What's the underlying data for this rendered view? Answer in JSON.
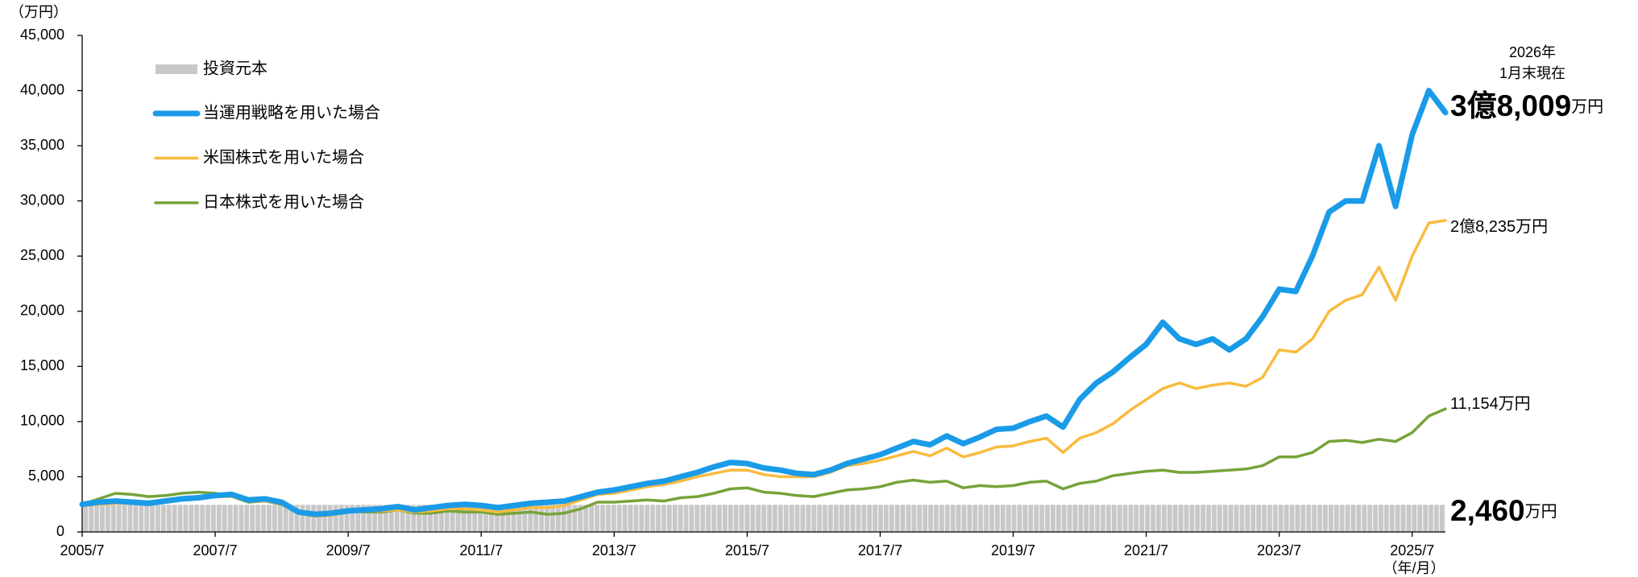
{
  "chart_data": {
    "type": "line",
    "y_label": "（万円）",
    "x_label": "（年/月）",
    "as_of": [
      "2026年",
      "1月末現在"
    ],
    "x": [
      "2005/7",
      "2005/10",
      "2006/1",
      "2006/4",
      "2006/7",
      "2006/10",
      "2007/1",
      "2007/4",
      "2007/7",
      "2007/10",
      "2008/1",
      "2008/4",
      "2008/7",
      "2008/10",
      "2009/1",
      "2009/4",
      "2009/7",
      "2009/10",
      "2010/1",
      "2010/4",
      "2010/7",
      "2010/10",
      "2011/1",
      "2011/4",
      "2011/7",
      "2011/10",
      "2012/1",
      "2012/4",
      "2012/7",
      "2012/10",
      "2013/1",
      "2013/4",
      "2013/7",
      "2013/10",
      "2014/1",
      "2014/4",
      "2014/7",
      "2014/10",
      "2015/1",
      "2015/4",
      "2015/7",
      "2015/10",
      "2016/1",
      "2016/4",
      "2016/7",
      "2016/10",
      "2017/1",
      "2017/4",
      "2017/7",
      "2017/10",
      "2018/1",
      "2018/4",
      "2018/7",
      "2018/10",
      "2019/1",
      "2019/4",
      "2019/7",
      "2019/10",
      "2020/1",
      "2020/4",
      "2020/7",
      "2020/10",
      "2021/1",
      "2021/4",
      "2021/7",
      "2021/10",
      "2022/1",
      "2022/4",
      "2022/7",
      "2022/10",
      "2023/1",
      "2023/4",
      "2023/7",
      "2023/10",
      "2024/1",
      "2024/4",
      "2024/7",
      "2024/10",
      "2025/1",
      "2025/4",
      "2025/7",
      "2025/10",
      "2026/1"
    ],
    "principal": {
      "name": "投資元本",
      "color": "#c8c8c8",
      "value": 2460,
      "end_label": [
        "2,460",
        "万円"
      ]
    },
    "series": [
      {
        "name": "当運用戦略を用いた場合",
        "color": "#1a9be8",
        "end_label": [
          "3億8,009",
          "万円"
        ],
        "values": [
          2500,
          2700,
          2800,
          2700,
          2600,
          2800,
          3000,
          3100,
          3300,
          3400,
          2900,
          3000,
          2700,
          1800,
          1600,
          1700,
          1900,
          2000,
          2100,
          2300,
          2000,
          2200,
          2400,
          2500,
          2400,
          2200,
          2400,
          2600,
          2700,
          2800,
          3200,
          3600,
          3800,
          4100,
          4400,
          4600,
          5000,
          5400,
          5900,
          6300,
          6200,
          5800,
          5600,
          5300,
          5200,
          5600,
          6200,
          6600,
          7000,
          7600,
          8200,
          7900,
          8700,
          8000,
          8600,
          9300,
          9400,
          10000,
          10500,
          9500,
          12000,
          13500,
          14500,
          15800,
          17000,
          19000,
          17500,
          17000,
          17500,
          16500,
          17500,
          19500,
          22000,
          21800,
          25000,
          29000,
          30000,
          30000,
          35000,
          29500,
          36000,
          40000,
          38009
        ]
      },
      {
        "name": "米国株式を用いた場合",
        "color": "#f9bb3f",
        "end_label": [
          "2億8,235万円"
        ],
        "values": [
          2400,
          2500,
          2600,
          2600,
          2700,
          2900,
          3100,
          3200,
          3200,
          3200,
          2800,
          2800,
          2600,
          1700,
          1400,
          1500,
          1800,
          1900,
          1900,
          2000,
          1800,
          1900,
          2100,
          2100,
          2000,
          1800,
          2000,
          2200,
          2200,
          2400,
          2900,
          3400,
          3500,
          3800,
          4100,
          4300,
          4600,
          5000,
          5300,
          5600,
          5600,
          5200,
          5000,
          5000,
          5000,
          5400,
          6000,
          6200,
          6500,
          6900,
          7300,
          6900,
          7600,
          6800,
          7200,
          7700,
          7800,
          8200,
          8500,
          7200,
          8500,
          9000,
          9800,
          11000,
          12000,
          13000,
          13500,
          13000,
          13300,
          13500,
          13200,
          14000,
          16500,
          16300,
          17500,
          20000,
          21000,
          21500,
          24000,
          21000,
          25000,
          28000,
          28235
        ]
      },
      {
        "name": "日本株式を用いた場合",
        "color": "#77a33a",
        "end_label": [
          "11,154万円"
        ],
        "values": [
          2500,
          3000,
          3500,
          3400,
          3200,
          3300,
          3500,
          3600,
          3500,
          3200,
          2700,
          2800,
          2500,
          1700,
          1500,
          1600,
          1900,
          1800,
          1800,
          2000,
          1700,
          1700,
          1900,
          1800,
          1800,
          1600,
          1700,
          1800,
          1600,
          1700,
          2100,
          2700,
          2700,
          2800,
          2900,
          2800,
          3100,
          3200,
          3500,
          3900,
          4000,
          3600,
          3500,
          3300,
          3200,
          3500,
          3800,
          3900,
          4100,
          4500,
          4700,
          4500,
          4600,
          4000,
          4200,
          4100,
          4200,
          4500,
          4600,
          3900,
          4400,
          4600,
          5100,
          5300,
          5500,
          5600,
          5400,
          5400,
          5500,
          5600,
          5700,
          6000,
          6800,
          6800,
          7200,
          8200,
          8300,
          8100,
          8400,
          8200,
          9000,
          10500,
          11154
        ]
      }
    ],
    "xticks": [
      "2005/7",
      "2007/7",
      "2009/7",
      "2011/7",
      "2013/7",
      "2015/7",
      "2017/7",
      "2019/7",
      "2021/7",
      "2023/7",
      "2025/7"
    ],
    "ylim": [
      0,
      45000
    ],
    "yticks": [
      0,
      {
        "value": 5000,
        "label": "5,000"
      },
      {
        "value": 10000,
        "label": "10,000"
      },
      {
        "value": 15000,
        "label": "15,000"
      },
      {
        "value": 20000,
        "label": "20,000"
      },
      {
        "value": 25000,
        "label": "25,000"
      },
      {
        "value": 30000,
        "label": "30,000"
      },
      {
        "value": 35000,
        "label": "35,000"
      },
      {
        "value": 40000,
        "label": "40,000"
      },
      {
        "value": 45000,
        "label": "45,000"
      }
    ],
    "grid": false
  }
}
